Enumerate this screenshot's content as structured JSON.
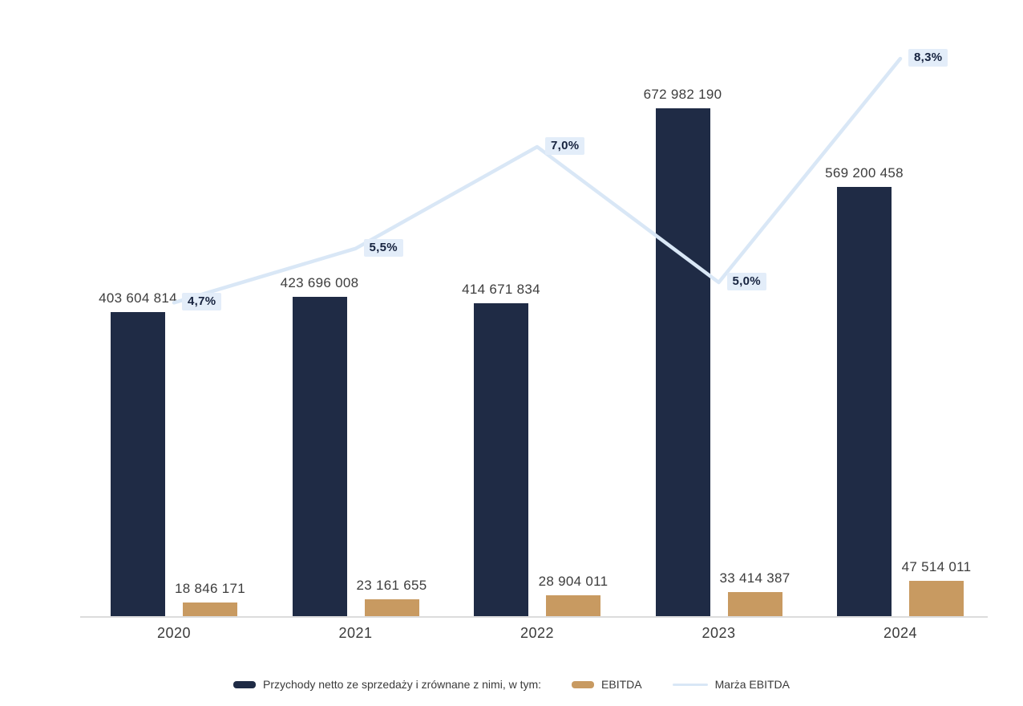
{
  "chart_data": {
    "type": "bar",
    "subtype": "bar-line-combo",
    "title": "",
    "xlabel": "",
    "ylabel": "",
    "grid": false,
    "value_axis_visible": false,
    "legend_position": "bottom",
    "categories": [
      "2020",
      "2021",
      "2022",
      "2023",
      "2024"
    ],
    "series": [
      {
        "name": "Przychody netto ze sprzedaży i zrównane z nimi, w tym:",
        "type": "bar",
        "color": "#1f2b45",
        "values": [
          403604814,
          423696008,
          414671834,
          672982190,
          569200458
        ],
        "labels": [
          "403 604 814",
          "423 696 008",
          "414 671 834",
          "672 982 190",
          "569 200 458"
        ]
      },
      {
        "name": "EBITDA",
        "type": "bar",
        "color": "#c89a61",
        "values": [
          18846171,
          23161655,
          28904011,
          33414387,
          47514011
        ],
        "labels": [
          "18 846 171",
          "23 161 655",
          "28 904 011",
          "33 414 387",
          "47 514 011"
        ]
      },
      {
        "name": "Marża EBITDA",
        "type": "line",
        "color": "#d9e7f6",
        "values": [
          4.7,
          5.5,
          7.0,
          5.0,
          8.3
        ],
        "labels": [
          "4,7%",
          "5,5%",
          "7,0%",
          "5,0%",
          "8,3%"
        ],
        "label_bg": "#e3edf9",
        "label_color": "#17233f"
      }
    ]
  },
  "colors": {
    "background": "#ffffff",
    "axis_line": "#dcdcdc",
    "value_label_text": "#3d3d3d",
    "category_label_text": "#3a3a3a"
  }
}
